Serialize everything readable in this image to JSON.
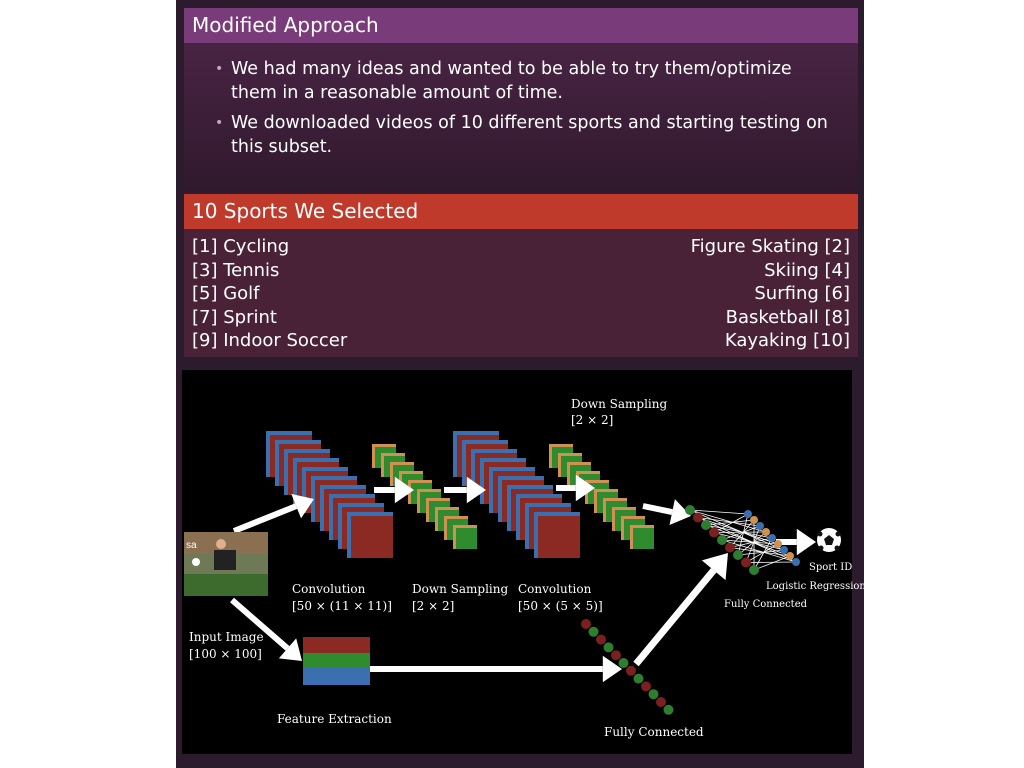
{
  "block1": {
    "title": "Modified Approach",
    "bullets": [
      "We had many ideas and wanted to be able to try them/optimize them in a reasonable amount of time.",
      "We downloaded videos of 10 different sports and starting testing on this subset."
    ]
  },
  "block2": {
    "title": "10 Sports We Selected",
    "rows": [
      {
        "left": "[1] Cycling",
        "right": "Figure Skating [2]"
      },
      {
        "left": "[3] Tennis",
        "right": "Skiing [4]"
      },
      {
        "left": "[5] Golf",
        "right": "Surfing [6]"
      },
      {
        "left": "[7] Sprint",
        "right": "Basketball [8]"
      },
      {
        "left": "[9] Indoor Soccer",
        "right": "Kayaking [10]"
      }
    ]
  },
  "diagram": {
    "down_sampling_top": "Down Sampling",
    "down_sampling_top_size": "[2 × 2]",
    "conv1": "Convolution",
    "conv1_size": "[50 × (11 × 11)]",
    "down_sampling": "Down Sampling",
    "down_sampling_size": "[2 × 2]",
    "conv2": "Convolution",
    "conv2_size": "[50 × (5 × 5)]",
    "input_image": "Input Image",
    "input_image_size": "[100 × 100]",
    "feature_extraction": "Feature Extraction",
    "fully_connected_bottom": "Fully Connected",
    "fully_connected_right": "Fully Connected",
    "logistic_regression": "Logistic Regression",
    "sport_id": "Sport ID"
  },
  "colors": {
    "blue": "#3a6fb0",
    "red": "#8b2a22",
    "green": "#2e8b2e",
    "orange": "#d09050",
    "node_red": "#7a2020",
    "node_green": "#2f7d2f"
  }
}
